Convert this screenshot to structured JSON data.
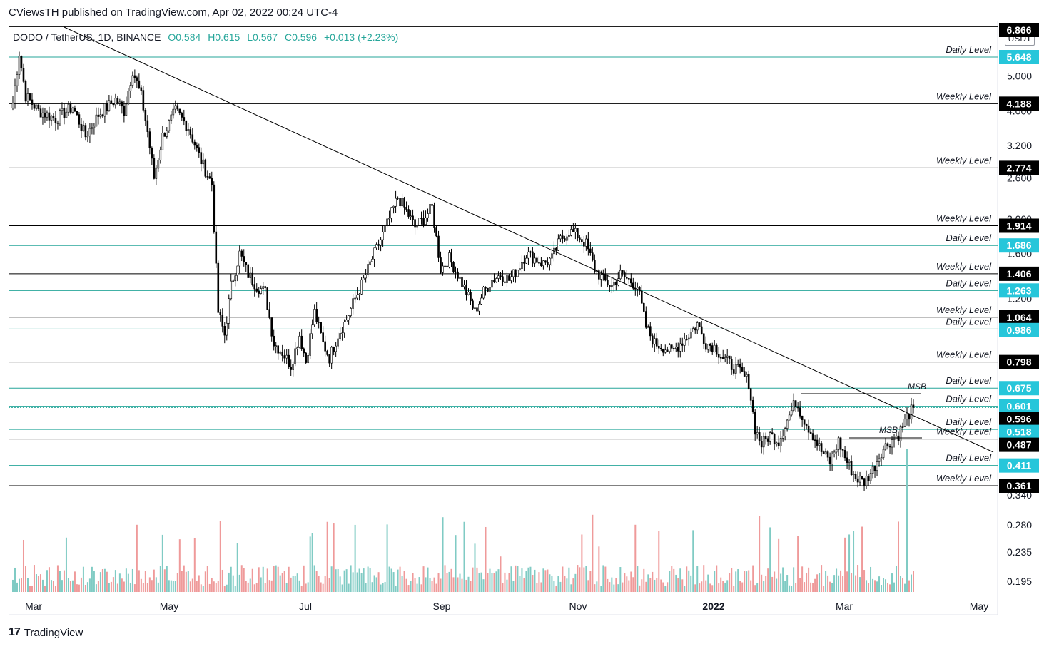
{
  "header": {
    "publisher": "CViewsTH published on TradingView.com, Apr 02, 2022 00:24 UTC-4"
  },
  "symbol": {
    "name": "DODO / TetherUS, 1D, BINANCE",
    "open": "O0.584",
    "high": "H0.615",
    "low": "L0.567",
    "close": "C0.596",
    "change": "+0.013 (+2.23%)"
  },
  "currency_badge": "USDT",
  "footer": {
    "brand": "TradingView",
    "mark": "17"
  },
  "colors": {
    "up": "#26a69a",
    "down": "#ef5350",
    "daily_level": "#26a69a",
    "weekly_level": "#000000"
  },
  "chart_data": {
    "type": "candlestick",
    "y_scale": "log",
    "x_tick_labels": [
      "Mar",
      "May",
      "Jul",
      "Sep",
      "Nov",
      "2022",
      "Mar",
      "May"
    ],
    "y_tick_labels": [
      "5.000",
      "4.000",
      "3.200",
      "2.600",
      "2.000",
      "1.600",
      "1.200",
      "0.340",
      "0.280",
      "0.235",
      "0.195"
    ],
    "levels": [
      {
        "value": 6.866,
        "label": "",
        "kind": "weekly"
      },
      {
        "value": 5.648,
        "label": "Daily Level",
        "kind": "daily"
      },
      {
        "value": 4.188,
        "label": "Weekly Level",
        "kind": "weekly"
      },
      {
        "value": 2.774,
        "label": "Weekly Level",
        "kind": "weekly"
      },
      {
        "value": 1.914,
        "label": "Weekly Level",
        "kind": "weekly"
      },
      {
        "value": 1.686,
        "label": "Daily Level",
        "kind": "daily"
      },
      {
        "value": 1.406,
        "label": "Weekly Level",
        "kind": "weekly"
      },
      {
        "value": 1.263,
        "label": "Daily Level",
        "kind": "daily"
      },
      {
        "value": 1.064,
        "label": "Weekly Level",
        "kind": "weekly"
      },
      {
        "value": 0.986,
        "label": "Daily Level",
        "kind": "daily"
      },
      {
        "value": 0.798,
        "label": "Weekly Level",
        "kind": "weekly"
      },
      {
        "value": 0.675,
        "label": "Daily Level",
        "kind": "daily"
      },
      {
        "value": 0.601,
        "label": "Daily Level",
        "kind": "daily"
      },
      {
        "value": 0.518,
        "label": "Daily Level",
        "kind": "daily"
      },
      {
        "value": 0.487,
        "label": "Weekly Level",
        "kind": "weekly"
      },
      {
        "value": 0.411,
        "label": "Daily Level",
        "kind": "daily"
      },
      {
        "value": 0.361,
        "label": "Weekly Level",
        "kind": "weekly"
      }
    ],
    "current_price": 0.596,
    "level_price_labels": [
      "6.866",
      "5.648",
      "4.188",
      "2.774",
      "1.914",
      "1.686",
      "1.406",
      "1.263",
      "1.064",
      "0.986",
      "0.798",
      "0.675",
      "0.601",
      "0.596",
      "0.518",
      "0.487",
      "0.411",
      "0.361"
    ],
    "annotations": [
      "MSB",
      "MSB"
    ],
    "price_path": [
      [
        0,
        4.2
      ],
      [
        3,
        5.8
      ],
      [
        6,
        4.4
      ],
      [
        12,
        4.0
      ],
      [
        20,
        3.8
      ],
      [
        28,
        4.1
      ],
      [
        34,
        3.4
      ],
      [
        40,
        3.9
      ],
      [
        48,
        4.3
      ],
      [
        52,
        4.0
      ],
      [
        56,
        5.2
      ],
      [
        60,
        4.4
      ],
      [
        63,
        3.5
      ],
      [
        66,
        2.6
      ],
      [
        70,
        3.4
      ],
      [
        76,
        4.0
      ],
      [
        82,
        3.6
      ],
      [
        88,
        2.9
      ],
      [
        93,
        2.5
      ],
      [
        96,
        1.1
      ],
      [
        99,
        0.95
      ],
      [
        102,
        1.3
      ],
      [
        106,
        1.6
      ],
      [
        110,
        1.4
      ],
      [
        114,
        1.3
      ],
      [
        118,
        1.25
      ],
      [
        122,
        0.9
      ],
      [
        126,
        0.85
      ],
      [
        130,
        0.78
      ],
      [
        134,
        0.95
      ],
      [
        137,
        0.8
      ],
      [
        141,
        1.1
      ],
      [
        145,
        0.9
      ],
      [
        148,
        0.82
      ],
      [
        152,
        0.95
      ],
      [
        156,
        1.05
      ],
      [
        160,
        1.2
      ],
      [
        164,
        1.35
      ],
      [
        168,
        1.55
      ],
      [
        172,
        1.75
      ],
      [
        176,
        2.0
      ],
      [
        180,
        2.3
      ],
      [
        184,
        2.1
      ],
      [
        188,
        1.9
      ],
      [
        192,
        2.0
      ],
      [
        196,
        2.15
      ],
      [
        200,
        1.45
      ],
      [
        204,
        1.55
      ],
      [
        208,
        1.4
      ],
      [
        212,
        1.25
      ],
      [
        216,
        1.1
      ],
      [
        220,
        1.25
      ],
      [
        224,
        1.35
      ],
      [
        228,
        1.4
      ],
      [
        232,
        1.35
      ],
      [
        236,
        1.45
      ],
      [
        240,
        1.6
      ],
      [
        244,
        1.55
      ],
      [
        248,
        1.5
      ],
      [
        252,
        1.55
      ],
      [
        256,
        1.75
      ],
      [
        260,
        1.85
      ],
      [
        264,
        1.8
      ],
      [
        268,
        1.7
      ],
      [
        272,
        1.45
      ],
      [
        276,
        1.35
      ],
      [
        280,
        1.3
      ],
      [
        284,
        1.4
      ],
      [
        288,
        1.35
      ],
      [
        292,
        1.3
      ],
      [
        296,
        1.0
      ],
      [
        300,
        0.9
      ],
      [
        304,
        0.88
      ],
      [
        308,
        0.85
      ],
      [
        312,
        0.9
      ],
      [
        316,
        0.95
      ],
      [
        320,
        1.02
      ],
      [
        324,
        0.9
      ],
      [
        328,
        0.88
      ],
      [
        332,
        0.82
      ],
      [
        336,
        0.78
      ],
      [
        340,
        0.75
      ],
      [
        344,
        0.7
      ],
      [
        347,
        0.52
      ],
      [
        350,
        0.47
      ],
      [
        354,
        0.5
      ],
      [
        358,
        0.48
      ],
      [
        362,
        0.55
      ],
      [
        366,
        0.62
      ],
      [
        370,
        0.55
      ],
      [
        374,
        0.5
      ],
      [
        378,
        0.45
      ],
      [
        382,
        0.42
      ],
      [
        386,
        0.48
      ],
      [
        390,
        0.42
      ],
      [
        394,
        0.38
      ],
      [
        398,
        0.37
      ],
      [
        402,
        0.4
      ],
      [
        406,
        0.45
      ],
      [
        410,
        0.48
      ],
      [
        414,
        0.5
      ],
      [
        418,
        0.56
      ],
      [
        421,
        0.596
      ]
    ],
    "volume_range": [
      0,
      100
    ]
  }
}
